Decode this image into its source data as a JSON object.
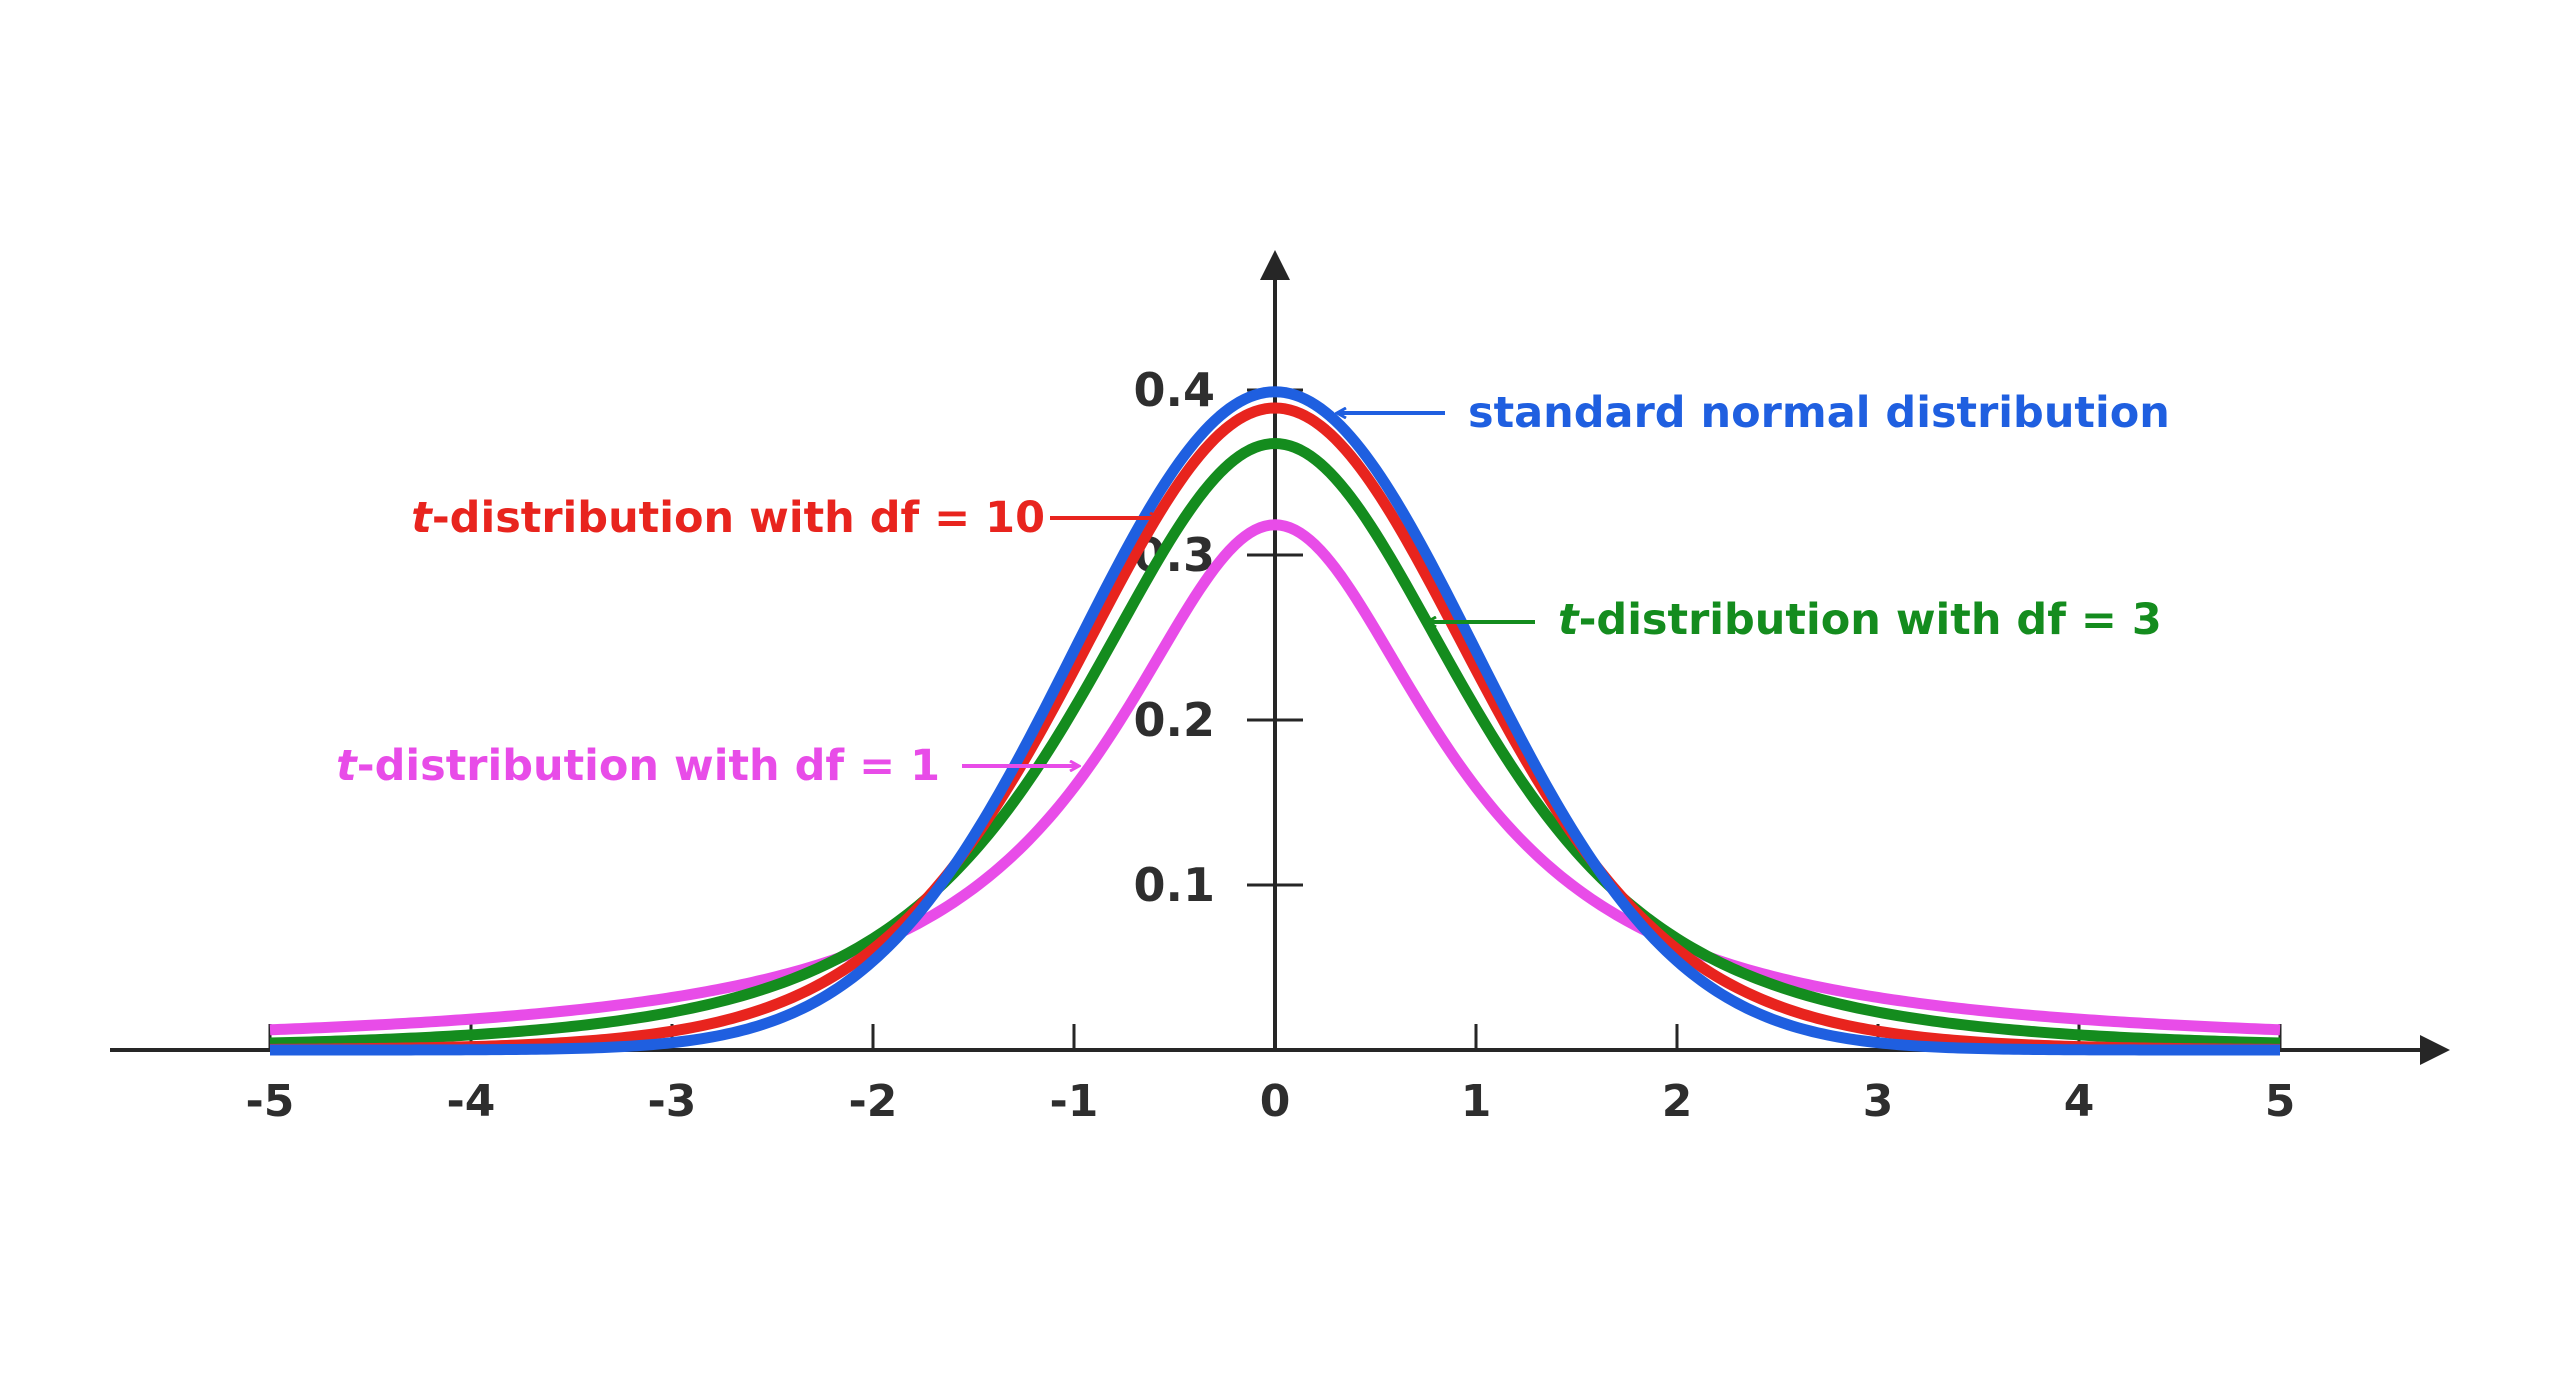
{
  "chart_data": {
    "type": "line",
    "title": "",
    "xlabel": "",
    "ylabel": "",
    "xlim": [
      -5,
      5
    ],
    "ylim": [
      0,
      0.4
    ],
    "x_ticks": [
      "-5",
      "-4",
      "-3",
      "-2",
      "-1",
      "0",
      "1",
      "2",
      "3",
      "4",
      "5"
    ],
    "y_ticks": [
      "0.1",
      "0.2",
      "0.3",
      "0.4"
    ],
    "grid": false,
    "legend": "annotations with arrows",
    "series": [
      {
        "key": "df1",
        "color": "#e84ce8",
        "label_prefix": "t",
        "label_rest": "-distribution with df = 1",
        "family": "t",
        "df": 1
      },
      {
        "key": "df3",
        "color": "#148c1e",
        "label_prefix": "t",
        "label_rest": "-distribution with df = 3",
        "family": "t",
        "df": 3
      },
      {
        "key": "df10",
        "color": "#e8241e",
        "label_prefix": "t",
        "label_rest": "-distribution with df = 10",
        "family": "t",
        "df": 10
      },
      {
        "key": "normal",
        "color": "#1f5fe0",
        "label_prefix": "",
        "label_rest": "standard normal distribution",
        "family": "normal"
      }
    ]
  }
}
